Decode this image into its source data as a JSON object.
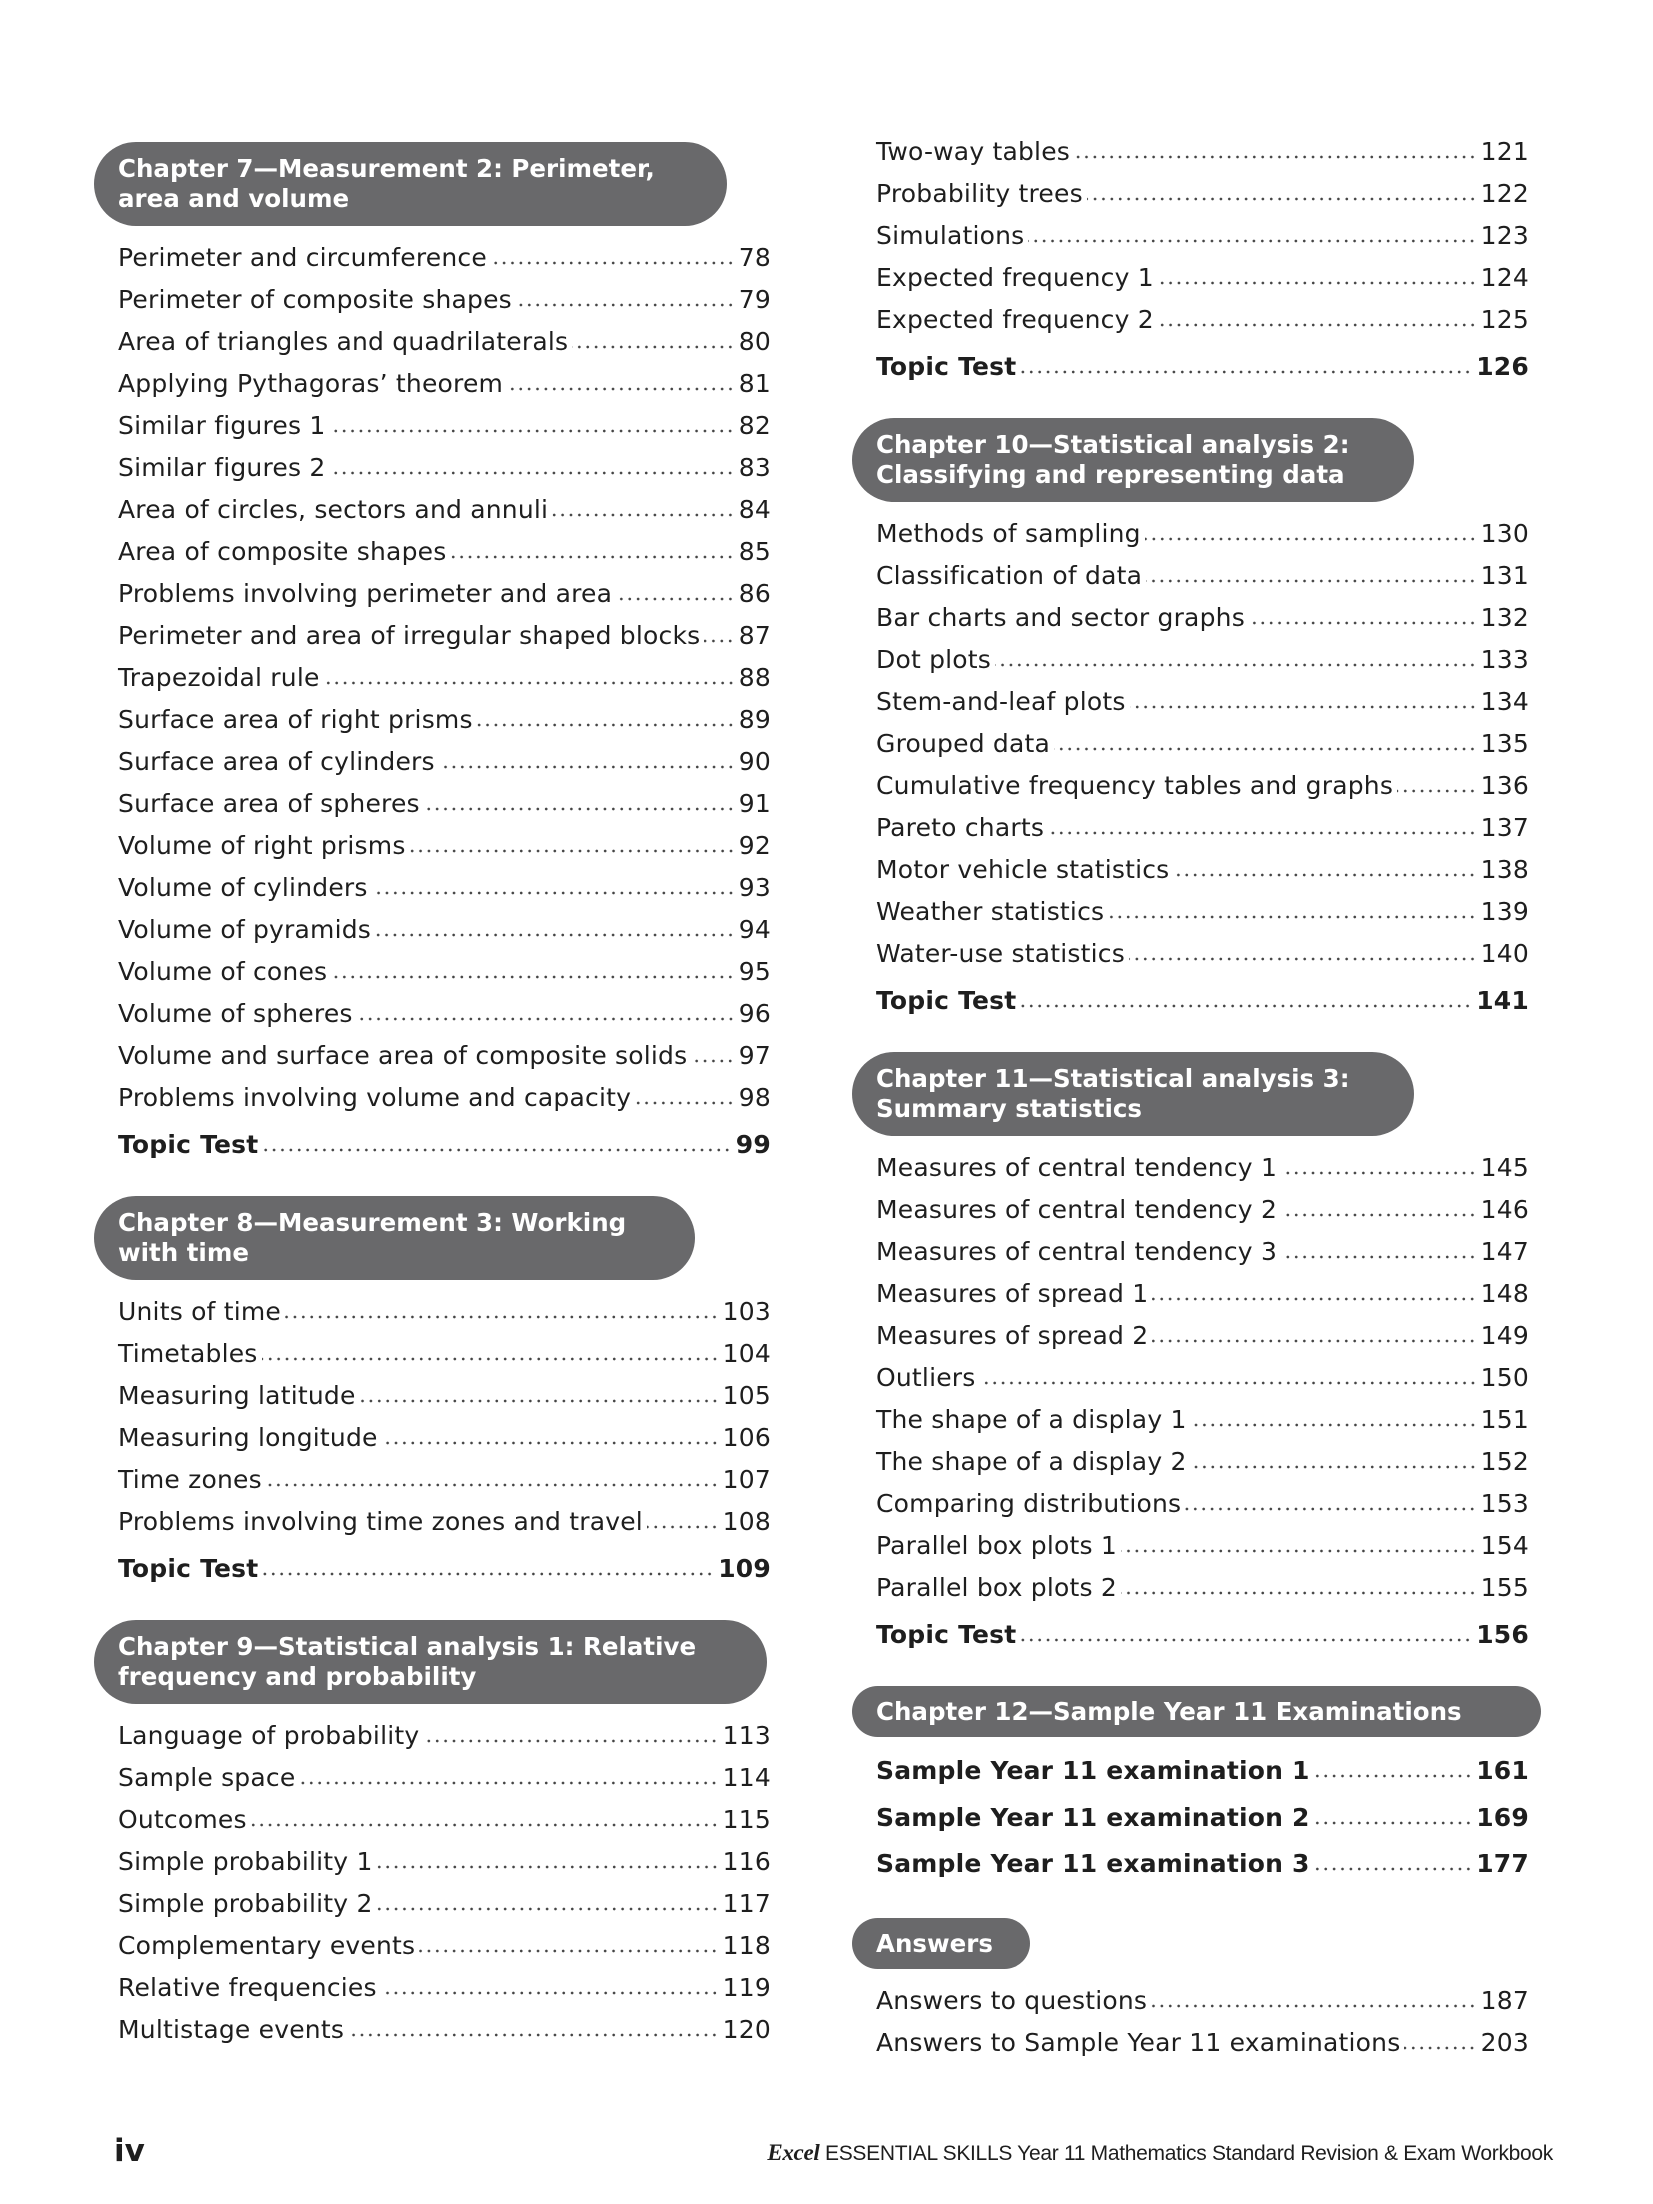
{
  "left": [
    {
      "heading": [
        "Chapter 7—Measurement 2: Perimeter,",
        "area and volume"
      ],
      "box_width": 633,
      "items": [
        {
          "label": "Perimeter and circumference",
          "page": "78"
        },
        {
          "label": "Perimeter of composite shapes",
          "page": "79"
        },
        {
          "label": "Area of triangles and quadrilaterals",
          "page": "80"
        },
        {
          "label": "Applying Pythagoras’ theorem",
          "page": "81"
        },
        {
          "label": "Similar figures 1",
          "page": "82"
        },
        {
          "label": "Similar figures 2",
          "page": "83"
        },
        {
          "label": "Area of circles, sectors and annuli",
          "page": "84"
        },
        {
          "label": "Area of composite shapes",
          "page": "85"
        },
        {
          "label": "Problems involving perimeter and area",
          "page": "86"
        },
        {
          "label": "Perimeter and area of irregular shaped blocks",
          "page": "87"
        },
        {
          "label": "Trapezoidal rule",
          "page": "88"
        },
        {
          "label": "Surface area of right prisms",
          "page": "89"
        },
        {
          "label": "Surface area of cylinders",
          "page": "90"
        },
        {
          "label": "Surface area of spheres",
          "page": "91"
        },
        {
          "label": "Volume of right prisms",
          "page": "92"
        },
        {
          "label": "Volume of cylinders",
          "page": "93"
        },
        {
          "label": "Volume of pyramids",
          "page": "94"
        },
        {
          "label": "Volume of cones",
          "page": "95"
        },
        {
          "label": "Volume of spheres",
          "page": "96"
        },
        {
          "label": "Volume and surface area of composite solids",
          "page": "97"
        },
        {
          "label": "Problems involving volume and capacity",
          "page": "98"
        },
        {
          "label": "Topic Test",
          "page": "99",
          "bold": true
        }
      ]
    },
    {
      "heading": [
        "Chapter 8—Measurement 3: Working",
        "with time"
      ],
      "box_width": 601,
      "items": [
        {
          "label": "Units of time",
          "page": "103"
        },
        {
          "label": "Timetables",
          "page": "104"
        },
        {
          "label": "Measuring latitude",
          "page": "105"
        },
        {
          "label": "Measuring longitude",
          "page": "106"
        },
        {
          "label": "Time zones",
          "page": "107"
        },
        {
          "label": "Problems involving time zones and travel",
          "page": "108"
        },
        {
          "label": "Topic Test",
          "page": "109",
          "bold": true
        }
      ]
    },
    {
      "heading": [
        "Chapter 9—Statistical analysis 1: Relative",
        "frequency and probability"
      ],
      "box_width": 673,
      "items": [
        {
          "label": "Language of probability",
          "page": "113"
        },
        {
          "label": "Sample space",
          "page": "114"
        },
        {
          "label": "Outcomes",
          "page": "115"
        },
        {
          "label": "Simple probability 1",
          "page": "116"
        },
        {
          "label": "Simple probability 2",
          "page": "117"
        },
        {
          "label": "Complementary events",
          "page": "118"
        },
        {
          "label": "Relative frequencies",
          "page": "119"
        },
        {
          "label": "Multistage events",
          "page": "120"
        }
      ]
    }
  ],
  "right": [
    {
      "heading": [],
      "items": [
        {
          "label": "Two-way tables",
          "page": "121"
        },
        {
          "label": "Probability trees",
          "page": "122"
        },
        {
          "label": "Simulations",
          "page": "123"
        },
        {
          "label": "Expected frequency 1",
          "page": "124"
        },
        {
          "label": "Expected frequency 2",
          "page": "125"
        },
        {
          "label": "Topic Test",
          "page": "126",
          "bold": true
        }
      ]
    },
    {
      "heading": [
        "Chapter 10—Statistical analysis 2:",
        "Classifying and representing data"
      ],
      "box_width": 562,
      "items": [
        {
          "label": "Methods of sampling",
          "page": "130"
        },
        {
          "label": "Classification of data",
          "page": "131"
        },
        {
          "label": "Bar charts and sector graphs",
          "page": "132"
        },
        {
          "label": "Dot plots",
          "page": "133"
        },
        {
          "label": "Stem-and-leaf plots",
          "page": "134"
        },
        {
          "label": "Grouped data",
          "page": "135"
        },
        {
          "label": "Cumulative frequency tables and graphs",
          "page": "136"
        },
        {
          "label": "Pareto charts",
          "page": "137"
        },
        {
          "label": "Motor vehicle statistics",
          "page": "138"
        },
        {
          "label": "Weather statistics",
          "page": "139"
        },
        {
          "label": "Water-use statistics",
          "page": "140"
        },
        {
          "label": "Topic Test",
          "page": "141",
          "bold": true
        }
      ]
    },
    {
      "heading": [
        "Chapter 11—Statistical analysis 3:",
        "Summary statistics"
      ],
      "box_width": 562,
      "items": [
        {
          "label": "Measures of central tendency 1",
          "page": "145"
        },
        {
          "label": "Measures of central tendency 2",
          "page": "146"
        },
        {
          "label": "Measures of central tendency 3",
          "page": "147"
        },
        {
          "label": "Measures of spread 1",
          "page": "148"
        },
        {
          "label": "Measures of spread 2",
          "page": "149"
        },
        {
          "label": "Outliers",
          "page": "150"
        },
        {
          "label": "The shape of a display 1",
          "page": "151"
        },
        {
          "label": "The shape of a display 2",
          "page": "152"
        },
        {
          "label": "Comparing distributions",
          "page": "153"
        },
        {
          "label": "Parallel box plots 1",
          "page": "154"
        },
        {
          "label": "Parallel box plots 2",
          "page": "155"
        },
        {
          "label": "Topic Test",
          "page": "156",
          "bold": true
        }
      ]
    },
    {
      "heading": [
        "Chapter 12—Sample Year 11 Examinations"
      ],
      "box_width": 689,
      "items": [
        {
          "label": "Sample Year 11 examination 1",
          "page": "161",
          "bold": true,
          "tall": true
        },
        {
          "label": "Sample Year 11 examination 2",
          "page": "169",
          "bold": true,
          "tall": true
        },
        {
          "label": "Sample Year 11 examination 3",
          "page": "177",
          "bold": true,
          "tall": true
        }
      ]
    },
    {
      "heading": [
        "Answers"
      ],
      "box_width": 178,
      "items": [
        {
          "label": "Answers to questions",
          "page": "187"
        },
        {
          "label": "Answers to Sample Year 11 examinations",
          "page": "203"
        }
      ]
    }
  ],
  "footer": {
    "page_number": "iv",
    "brand": "Excel",
    "title": "ESSENTIAL SKILLS Year 11 Mathematics Standard Revision & Exam Workbook"
  },
  "colors": {
    "heading_bg": "#69696b",
    "heading_text": "#ffffff",
    "text": "#1e1e1e"
  }
}
